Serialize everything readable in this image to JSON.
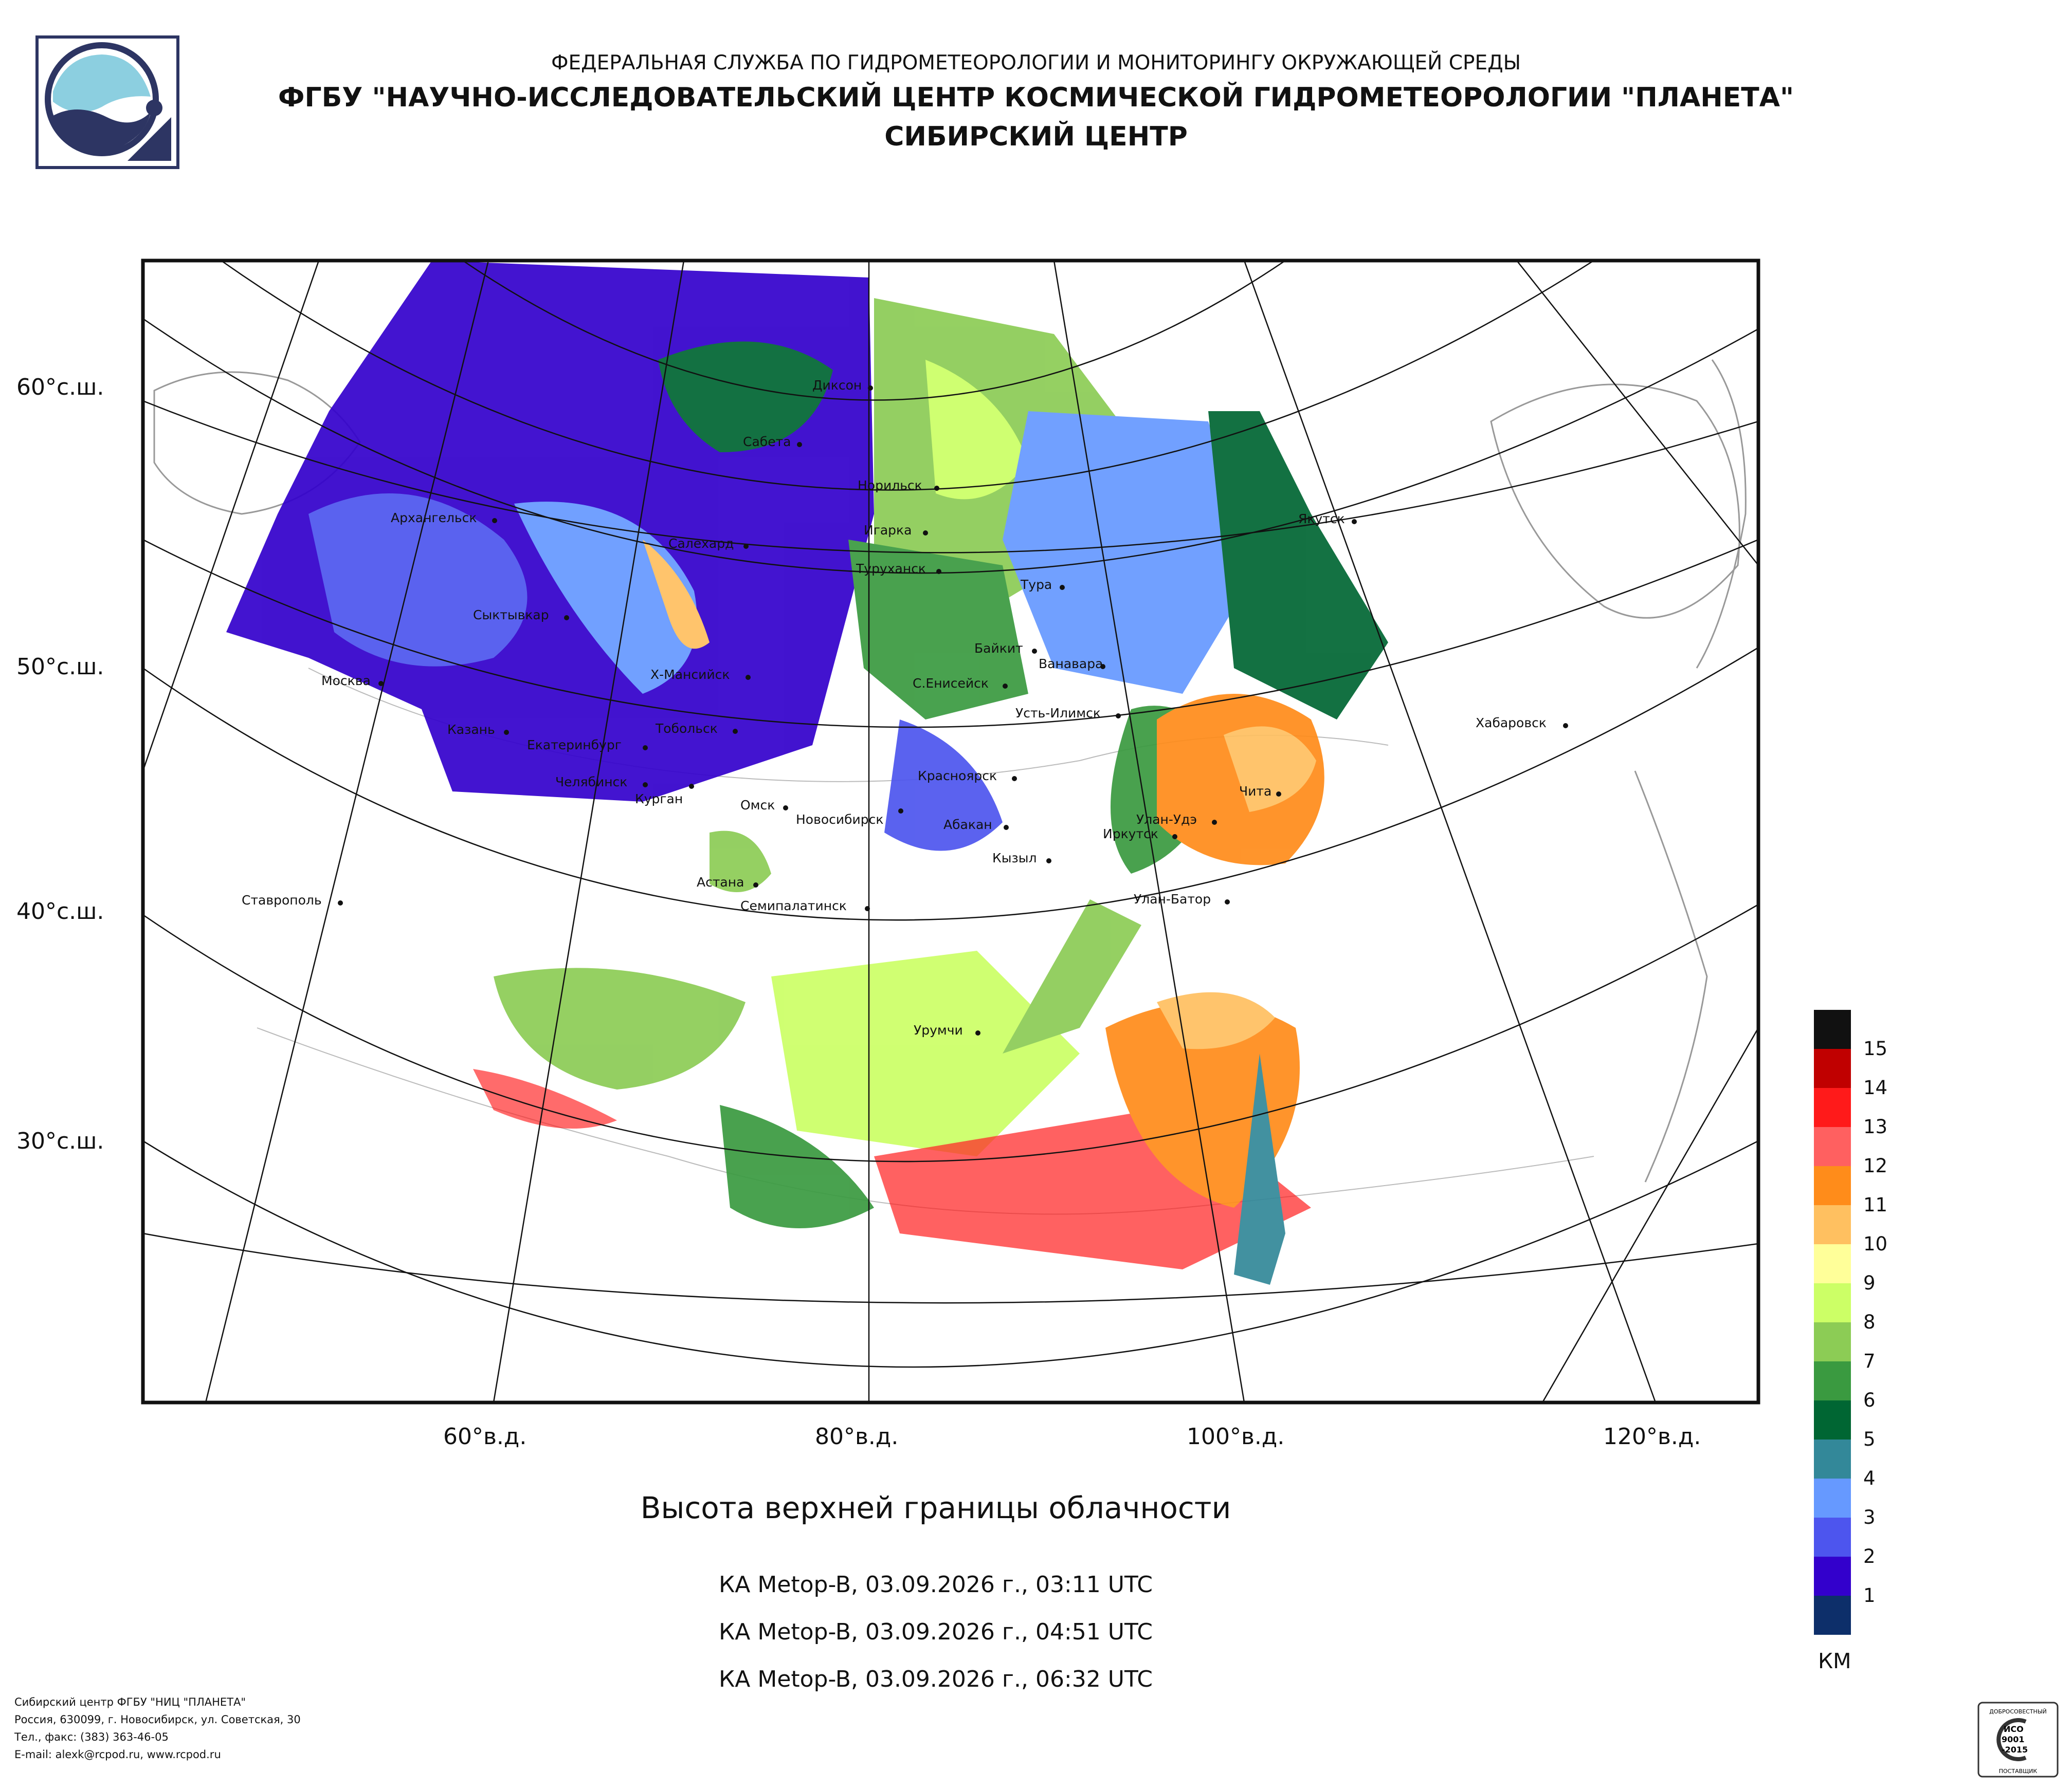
{
  "header": {
    "line1": "ФЕДЕРАЛЬНАЯ СЛУЖБА ПО ГИДРОМЕТЕОРОЛОГИИ И МОНИТОРИНГУ ОКРУЖАЮЩЕЙ СРЕДЫ",
    "line2": "ФГБУ \"НАУЧНО-ИССЛЕДОВАТЕЛЬСКИЙ ЦЕНТР КОСМИЧЕСКОЙ ГИДРОМЕТЕОРОЛОГИИ \"ПЛАНЕТА\"",
    "line3": "СИБИРСКИЙ ЦЕНТР"
  },
  "map": {
    "lat_labels": [
      "60°с.ш.",
      "50°с.ш.",
      "40°с.ш.",
      "30°с.ш."
    ],
    "lon_labels": [
      "60°в.д.",
      "80°в.д.",
      "100°в.д.",
      "120°в.д."
    ],
    "cities": [
      "Диксон",
      "Сабета",
      "Норильск",
      "Архангельск",
      "Салехард",
      "Игарка",
      "Туруханск",
      "Тура",
      "Якутск",
      "Сыктывкар",
      "Байкит",
      "Ванавара",
      "Москва",
      "Х-Мансийск",
      "С.Енисейск",
      "Усть-Илимск",
      "Казань",
      "Тобольск",
      "Хабаровск",
      "Екатеринбург",
      "Красноярск",
      "Челябинск",
      "Курган",
      "Чита",
      "Омск",
      "Новосибирск",
      "Абакан",
      "Улан-Удэ",
      "Иркутск",
      "Кызыл",
      "Астана",
      "Ставрополь",
      "Улан-Батор",
      "Семипалатинск",
      "Урумчи"
    ]
  },
  "title": "Высота верхней границы облачности",
  "passes": [
    "КА Metop-B, 03.09.2026 г., 03:11 UTC",
    "КА Metop-B, 03.09.2026 г., 04:51 UTC",
    "КА Metop-B, 03.09.2026 г., 06:32 UTC"
  ],
  "legend": {
    "unit": "КМ",
    "levels": [
      {
        "label": "15",
        "color": "#111111"
      },
      {
        "label": "14",
        "color": "#c00000"
      },
      {
        "label": "13",
        "color": "#ff1a1a"
      },
      {
        "label": "12",
        "color": "#ff6060"
      },
      {
        "label": "11",
        "color": "#ff8c1a"
      },
      {
        "label": "10",
        "color": "#ffc060"
      },
      {
        "label": "9",
        "color": "#ffff99"
      },
      {
        "label": "8",
        "color": "#ccff66"
      },
      {
        "label": "7",
        "color": "#8ccc55"
      },
      {
        "label": "6",
        "color": "#3a9a40"
      },
      {
        "label": "5",
        "color": "#006633"
      },
      {
        "label": "4",
        "color": "#338899"
      },
      {
        "label": "3",
        "color": "#6699ff"
      },
      {
        "label": "2",
        "color": "#4d55ee"
      },
      {
        "label": "1",
        "color": "#3300cc"
      },
      {
        "label": "",
        "color": "#0d2f6a"
      }
    ]
  },
  "footer": {
    "line1": "Сибирский центр ФГБУ \"НИЦ \"ПЛАНЕТА\"",
    "line2": "Россия, 630099, г. Новосибирск, ул. Советская, 30",
    "line3": "Тел., факс: (383) 363-46-05",
    "line4": "E-mail: alexk@rcpod.ru, www.rcpod.ru"
  },
  "cert": {
    "top": "ДОБРОСОВЕСТНЫЙ",
    "l1": "ИСО",
    "l2": "9001",
    "l3": "-2015",
    "bottom": "ПОСТАВЩИК"
  }
}
